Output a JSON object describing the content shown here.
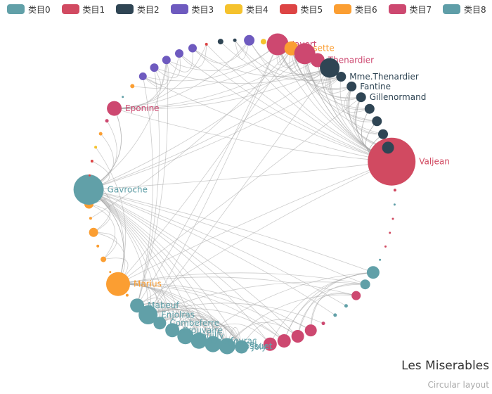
{
  "title": "Les Miserables",
  "subtitle": "Circular layout",
  "categories": [
    {
      "name": "类目0",
      "color": "#61a0a8"
    },
    {
      "name": "类目1",
      "color": "#d14a61"
    },
    {
      "name": "类目2",
      "color": "#2f4554"
    },
    {
      "name": "类目3",
      "color": "#6e5abf"
    },
    {
      "name": "类目4",
      "color": "#f5c22d"
    },
    {
      "name": "类目5",
      "color": "#dd4444"
    },
    {
      "name": "类目6",
      "color": "#fb9e32"
    },
    {
      "name": "类目7",
      "color": "#cd4870"
    },
    {
      "name": "类目8",
      "color": "#5f9ea8"
    }
  ],
  "nodes": [
    {
      "name": "Valjean",
      "category": 1,
      "size": 68,
      "label": true
    },
    {
      "name": "",
      "category": 1,
      "size": 4
    },
    {
      "name": "",
      "category": 1,
      "size": 4
    },
    {
      "name": "",
      "category": 8,
      "size": 3
    },
    {
      "name": "",
      "category": 1,
      "size": 3
    },
    {
      "name": "",
      "category": 1,
      "size": 3
    },
    {
      "name": "",
      "category": 1,
      "size": 3
    },
    {
      "name": "",
      "category": 0,
      "size": 3
    },
    {
      "name": "",
      "category": 0,
      "size": 18
    },
    {
      "name": "",
      "category": 0,
      "size": 14
    },
    {
      "name": "",
      "category": 7,
      "size": 13
    },
    {
      "name": "",
      "category": 0,
      "size": 5
    },
    {
      "name": "",
      "category": 0,
      "size": 5
    },
    {
      "name": "",
      "category": 7,
      "size": 5
    },
    {
      "name": "",
      "category": 7,
      "size": 17
    },
    {
      "name": "",
      "category": 7,
      "size": 18
    },
    {
      "name": "",
      "category": 7,
      "size": 19
    },
    {
      "name": "",
      "category": 7,
      "size": 19
    },
    {
      "name": "",
      "category": 0,
      "size": 3
    },
    {
      "name": "Joly",
      "category": 0,
      "size": 19,
      "label": true
    },
    {
      "name": "Bossuet",
      "category": 0,
      "size": 23,
      "label": true
    },
    {
      "name": "Bahorel",
      "category": 0,
      "size": 23,
      "label": true
    },
    {
      "name": "Courfeyrac",
      "category": 0,
      "size": 23,
      "label": true
    },
    {
      "name": "Feuilly",
      "category": 0,
      "size": 23,
      "label": true
    },
    {
      "name": "Prouvaire",
      "category": 0,
      "size": 20,
      "label": true
    },
    {
      "name": "Combeferre",
      "category": 0,
      "size": 18,
      "label": true
    },
    {
      "name": "Enjolras",
      "category": 0,
      "size": 27,
      "label": true
    },
    {
      "name": "Mabeuf",
      "category": 0,
      "size": 20,
      "label": true
    },
    {
      "name": "",
      "category": 6,
      "size": 4
    },
    {
      "name": "Marius",
      "category": 6,
      "size": 34,
      "label": true
    },
    {
      "name": "",
      "category": 6,
      "size": 3
    },
    {
      "name": "",
      "category": 6,
      "size": 8
    },
    {
      "name": "",
      "category": 6,
      "size": 4
    },
    {
      "name": "",
      "category": 6,
      "size": 13
    },
    {
      "name": "",
      "category": 6,
      "size": 4
    },
    {
      "name": "",
      "category": 6,
      "size": 13
    },
    {
      "name": "Gavroche",
      "category": 0,
      "size": 43,
      "label": true
    },
    {
      "name": "",
      "category": 5,
      "size": 3
    },
    {
      "name": "",
      "category": 5,
      "size": 4
    },
    {
      "name": "",
      "category": 4,
      "size": 4
    },
    {
      "name": "",
      "category": 6,
      "size": 5
    },
    {
      "name": "",
      "category": 7,
      "size": 5
    },
    {
      "name": "Eponine",
      "category": 7,
      "size": 21,
      "label": true
    },
    {
      "name": "",
      "category": 0,
      "size": 3
    },
    {
      "name": "",
      "category": 6,
      "size": 6
    },
    {
      "name": "",
      "category": 3,
      "size": 11
    },
    {
      "name": "",
      "category": 3,
      "size": 12
    },
    {
      "name": "",
      "category": 3,
      "size": 12
    },
    {
      "name": "",
      "category": 3,
      "size": 12
    },
    {
      "name": "",
      "category": 3,
      "size": 12
    },
    {
      "name": "",
      "category": 5,
      "size": 4
    },
    {
      "name": "",
      "category": 2,
      "size": 8
    },
    {
      "name": "",
      "category": 2,
      "size": 5
    },
    {
      "name": "",
      "category": 3,
      "size": 15
    },
    {
      "name": "",
      "category": 4,
      "size": 8
    },
    {
      "name": "Javert",
      "category": 7,
      "size": 31,
      "label": true
    },
    {
      "name": "Cosette",
      "category": 6,
      "size": 20,
      "label": true
    },
    {
      "name": "",
      "category": 7,
      "size": 30
    },
    {
      "name": "Thenardier",
      "category": 7,
      "size": 20,
      "label": true
    },
    {
      "name": "",
      "category": 2,
      "size": 28
    },
    {
      "name": "Mme.Thenardier",
      "category": 2,
      "size": 14,
      "label": true
    },
    {
      "name": "Fantine",
      "category": 2,
      "size": 14,
      "label": true
    },
    {
      "name": "Gillenormand",
      "category": 2,
      "size": 14,
      "label": true
    },
    {
      "name": "",
      "category": 2,
      "size": 14
    },
    {
      "name": "",
      "category": 2,
      "size": 14
    },
    {
      "name": "",
      "category": 2,
      "size": 14
    },
    {
      "name": "",
      "category": 2,
      "size": 17
    }
  ],
  "links": [
    [
      0,
      59
    ],
    [
      0,
      57
    ],
    [
      0,
      55
    ],
    [
      0,
      61
    ],
    [
      0,
      56
    ],
    [
      0,
      29
    ],
    [
      0,
      66
    ],
    [
      0,
      65
    ],
    [
      0,
      64
    ],
    [
      0,
      63
    ],
    [
      0,
      62
    ],
    [
      0,
      58
    ],
    [
      0,
      42
    ],
    [
      0,
      36
    ],
    [
      0,
      27
    ],
    [
      0,
      49
    ],
    [
      0,
      45
    ],
    [
      0,
      52
    ],
    [
      36,
      26
    ],
    [
      36,
      22
    ],
    [
      36,
      20
    ],
    [
      36,
      19
    ],
    [
      36,
      25
    ],
    [
      36,
      23
    ],
    [
      36,
      21
    ],
    [
      36,
      24
    ],
    [
      36,
      29
    ],
    [
      36,
      42
    ],
    [
      36,
      59
    ],
    [
      36,
      60
    ],
    [
      36,
      57
    ],
    [
      36,
      12
    ],
    [
      36,
      11
    ],
    [
      36,
      9
    ],
    [
      36,
      8
    ],
    [
      36,
      16
    ],
    [
      36,
      17
    ],
    [
      36,
      15
    ],
    [
      36,
      47
    ],
    [
      29,
      26
    ],
    [
      29,
      22
    ],
    [
      29,
      20
    ],
    [
      29,
      19
    ],
    [
      29,
      25
    ],
    [
      29,
      23
    ],
    [
      29,
      21
    ],
    [
      29,
      24
    ],
    [
      29,
      36
    ],
    [
      29,
      56
    ],
    [
      29,
      62
    ],
    [
      29,
      16
    ],
    [
      29,
      14
    ],
    [
      29,
      10
    ],
    [
      29,
      9
    ],
    [
      29,
      15
    ],
    [
      26,
      22
    ],
    [
      26,
      20
    ],
    [
      26,
      19
    ],
    [
      26,
      25
    ],
    [
      26,
      23
    ],
    [
      26,
      21
    ],
    [
      26,
      24
    ],
    [
      26,
      59
    ],
    [
      26,
      55
    ],
    [
      26,
      16
    ],
    [
      26,
      9
    ],
    [
      26,
      13
    ],
    [
      22,
      20
    ],
    [
      22,
      19
    ],
    [
      22,
      25
    ],
    [
      22,
      23
    ],
    [
      22,
      21
    ],
    [
      22,
      24
    ],
    [
      22,
      17
    ],
    [
      22,
      8
    ],
    [
      20,
      19
    ],
    [
      20,
      25
    ],
    [
      20,
      23
    ],
    [
      20,
      21
    ],
    [
      20,
      24
    ],
    [
      20,
      27
    ],
    [
      20,
      10
    ],
    [
      20,
      15
    ],
    [
      19,
      25
    ],
    [
      19,
      23
    ],
    [
      19,
      21
    ],
    [
      19,
      24
    ],
    [
      19,
      27
    ],
    [
      19,
      14
    ],
    [
      25,
      23
    ],
    [
      25,
      21
    ],
    [
      25,
      24
    ],
    [
      25,
      27
    ],
    [
      23,
      21
    ],
    [
      23,
      24
    ],
    [
      21,
      24
    ],
    [
      21,
      27
    ],
    [
      27,
      45
    ],
    [
      27,
      46
    ],
    [
      27,
      47
    ],
    [
      27,
      55
    ],
    [
      42,
      36
    ],
    [
      42,
      58
    ],
    [
      42,
      59
    ],
    [
      42,
      57
    ],
    [
      42,
      47
    ],
    [
      42,
      48
    ],
    [
      42,
      50
    ],
    [
      42,
      53
    ],
    [
      59,
      60
    ],
    [
      59,
      55
    ],
    [
      59,
      56
    ],
    [
      59,
      57
    ],
    [
      59,
      61
    ],
    [
      59,
      62
    ],
    [
      59,
      63
    ],
    [
      59,
      64
    ],
    [
      59,
      53
    ],
    [
      59,
      49
    ],
    [
      59,
      46
    ],
    [
      55,
      56
    ],
    [
      55,
      57
    ],
    [
      55,
      61
    ],
    [
      55,
      60
    ],
    [
      55,
      45
    ],
    [
      55,
      47
    ],
    [
      56,
      62
    ],
    [
      56,
      57
    ],
    [
      56,
      63
    ],
    [
      56,
      64
    ],
    [
      56,
      44
    ],
    [
      56,
      34
    ],
    [
      57,
      61
    ],
    [
      57,
      62
    ],
    [
      57,
      60
    ],
    [
      57,
      65
    ],
    [
      61,
      66
    ],
    [
      61,
      65
    ],
    [
      61,
      64
    ],
    [
      61,
      63
    ],
    [
      62,
      65
    ],
    [
      62,
      66
    ],
    [
      8,
      16
    ],
    [
      8,
      17
    ],
    [
      8,
      15
    ],
    [
      9,
      16
    ],
    [
      9,
      14
    ],
    [
      10,
      15
    ],
    [
      10,
      14
    ],
    [
      60,
      66
    ],
    [
      60,
      52
    ],
    [
      60,
      51
    ],
    [
      45,
      46
    ],
    [
      45,
      47
    ],
    [
      46,
      48
    ],
    [
      47,
      49
    ],
    [
      48,
      50
    ],
    [
      49,
      53
    ],
    [
      53,
      52
    ],
    [
      31,
      33
    ],
    [
      33,
      35
    ],
    [
      31,
      35
    ],
    [
      36,
      33
    ],
    [
      36,
      35
    ],
    [
      29,
      33
    ],
    [
      29,
      31
    ],
    [
      40,
      36
    ],
    [
      38,
      36
    ],
    [
      39,
      29
    ],
    [
      41,
      36
    ],
    [
      37,
      29
    ],
    [
      66,
      0
    ],
    [
      65,
      0
    ],
    [
      64,
      0
    ],
    [
      63,
      0
    ],
    [
      62,
      0
    ],
    [
      58,
      0
    ],
    [
      57,
      0
    ],
    [
      53,
      0
    ],
    [
      50,
      0
    ],
    [
      48,
      0
    ]
  ]
}
